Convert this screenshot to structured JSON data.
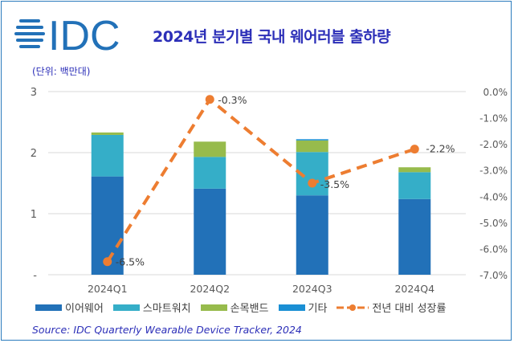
{
  "header": {
    "logo_text": "IDC",
    "title": "2024년 분기별 국내 웨어러블 출하량",
    "unit": "(단위: 백만대)"
  },
  "colors": {
    "earwear": "#2271b8",
    "smartwatch": "#35aec8",
    "band": "#97bb4c",
    "other": "#1a8fd4",
    "growth": "#ed7d31",
    "title": "#2c2fb8"
  },
  "chart_data": {
    "type": "bar",
    "stacked": true,
    "categories": [
      "2024Q1",
      "2024Q2",
      "2024Q3",
      "2024Q4"
    ],
    "series": [
      {
        "name": "이어웨어",
        "values": [
          1.61,
          1.41,
          1.3,
          1.24
        ]
      },
      {
        "name": "스마트워치",
        "values": [
          0.68,
          0.52,
          0.71,
          0.44
        ]
      },
      {
        "name": "손목밴드",
        "values": [
          0.04,
          0.25,
          0.19,
          0.08
        ]
      },
      {
        "name": "기타",
        "values": [
          0.0,
          0.0,
          0.02,
          0.0
        ]
      }
    ],
    "line_series": {
      "name": "전년 대비 성장률",
      "values": [
        -6.5,
        -0.3,
        -3.5,
        -2.2
      ],
      "labels": [
        "-6.5%",
        "-0.3%",
        "-3.5%",
        "-2.2%"
      ],
      "axis": "right",
      "style": "dashed"
    },
    "left_axis": {
      "ylim": [
        0,
        3
      ],
      "ticks": [
        "-",
        "1",
        "2",
        "3"
      ]
    },
    "right_axis": {
      "ylim": [
        -7,
        0
      ],
      "ticks": [
        "0.0%",
        "-1.0%",
        "-2.0%",
        "-3.0%",
        "-4.0%",
        "-5.0%",
        "-6.0%",
        "-7.0%"
      ]
    },
    "grid": true,
    "legend": "bottom"
  },
  "source": "Source: IDC Quarterly Wearable Device Tracker, 2024"
}
